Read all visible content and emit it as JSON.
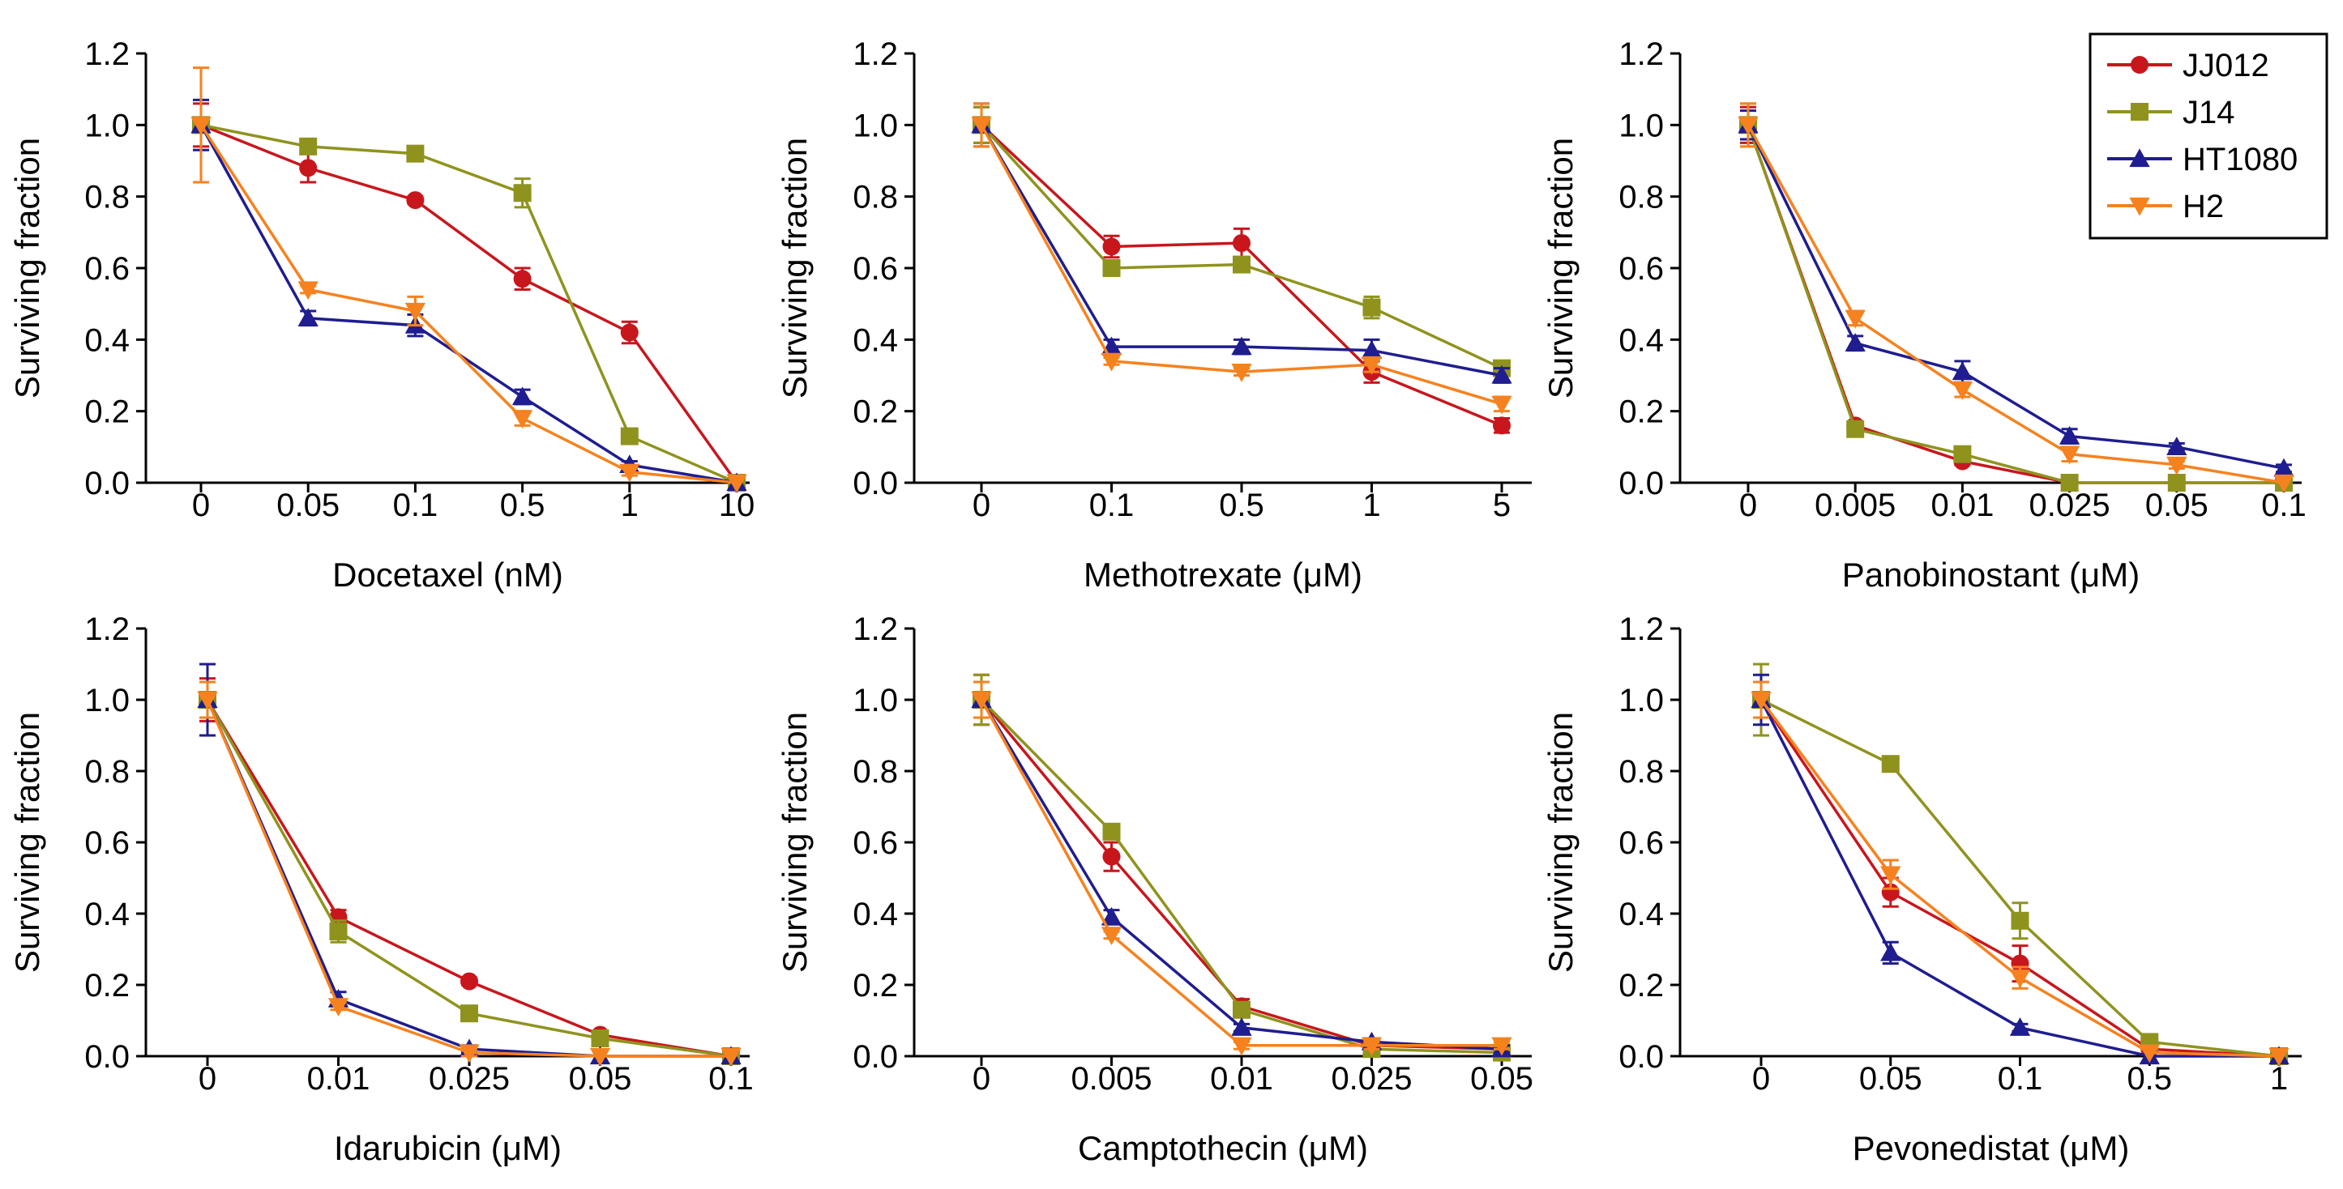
{
  "legend": {
    "location": "top-right",
    "entries": [
      {
        "name": "JJ012",
        "color": "#c8161d",
        "marker": "circle"
      },
      {
        "name": "J14",
        "color": "#8f931e",
        "marker": "square"
      },
      {
        "name": "HT1080",
        "color": "#1f1d8f",
        "marker": "triangle-up"
      },
      {
        "name": "H2",
        "color": "#f6821f",
        "marker": "triangle-down"
      }
    ]
  },
  "chart_data": [
    {
      "type": "line",
      "xlabel": "Docetaxel (nM)",
      "ylabel": "Surviving fraction",
      "ylim": [
        0,
        1.2
      ],
      "yticks": [
        "0.0",
        "0.2",
        "0.4",
        "0.6",
        "0.8",
        "1.0",
        "1.2"
      ],
      "categories": [
        "0",
        "0.05",
        "0.1",
        "0.5",
        "1",
        "10"
      ],
      "series": [
        {
          "name": "JJ012",
          "values": [
            1.0,
            0.88,
            0.79,
            0.57,
            0.42,
            0.0
          ],
          "errors": [
            0.06,
            0.04,
            0.01,
            0.03,
            0.03,
            0.0
          ]
        },
        {
          "name": "J14",
          "values": [
            1.0,
            0.94,
            0.92,
            0.81,
            0.13,
            0.0
          ],
          "errors": [
            0.02,
            0.01,
            0.01,
            0.04,
            0.01,
            0.0
          ]
        },
        {
          "name": "HT1080",
          "values": [
            1.0,
            0.46,
            0.44,
            0.24,
            0.05,
            0.0
          ],
          "errors": [
            0.07,
            0.02,
            0.03,
            0.02,
            0.01,
            0.0
          ]
        },
        {
          "name": "H2",
          "values": [
            1.0,
            0.54,
            0.48,
            0.18,
            0.03,
            0.0
          ],
          "errors": [
            0.16,
            0.01,
            0.04,
            0.02,
            0.01,
            0.0
          ]
        }
      ]
    },
    {
      "type": "line",
      "xlabel": "Methotrexate (μM)",
      "ylabel": "Surviving fraction",
      "ylim": [
        0,
        1.2
      ],
      "yticks": [
        "0.0",
        "0.2",
        "0.4",
        "0.6",
        "0.8",
        "1.0",
        "1.2"
      ],
      "categories": [
        "0",
        "0.1",
        "0.5",
        "1",
        "5"
      ],
      "series": [
        {
          "name": "JJ012",
          "values": [
            1.0,
            0.66,
            0.67,
            0.31,
            0.16
          ],
          "errors": [
            0.05,
            0.03,
            0.04,
            0.03,
            0.02
          ]
        },
        {
          "name": "J14",
          "values": [
            1.0,
            0.6,
            0.61,
            0.49,
            0.32
          ],
          "errors": [
            0.05,
            0.02,
            0.02,
            0.03,
            0.02
          ]
        },
        {
          "name": "HT1080",
          "values": [
            1.0,
            0.38,
            0.38,
            0.37,
            0.3
          ],
          "errors": [
            0.06,
            0.02,
            0.02,
            0.03,
            0.02
          ]
        },
        {
          "name": "H2",
          "values": [
            1.0,
            0.34,
            0.31,
            0.33,
            0.22
          ],
          "errors": [
            0.06,
            0.01,
            0.01,
            0.02,
            0.02
          ]
        }
      ]
    },
    {
      "type": "line",
      "xlabel": "Panobinostant (μM)",
      "ylabel": "Surviving fraction",
      "ylim": [
        0,
        1.2
      ],
      "yticks": [
        "0.0",
        "0.2",
        "0.4",
        "0.6",
        "0.8",
        "1.0",
        "1.2"
      ],
      "categories": [
        "0",
        "0.005",
        "0.01",
        "0.025",
        "0.05",
        "0.1"
      ],
      "series": [
        {
          "name": "JJ012",
          "values": [
            1.0,
            0.16,
            0.06,
            0.0,
            0.0,
            0.0
          ],
          "errors": [
            0.05,
            0.01,
            0.01,
            0.0,
            0.0,
            0.0
          ]
        },
        {
          "name": "J14",
          "values": [
            1.0,
            0.15,
            0.08,
            0.0,
            0.0,
            0.0
          ],
          "errors": [
            0.06,
            0.01,
            0.01,
            0.0,
            0.0,
            0.0
          ]
        },
        {
          "name": "HT1080",
          "values": [
            1.0,
            0.39,
            0.31,
            0.13,
            0.1,
            0.04
          ],
          "errors": [
            0.04,
            0.02,
            0.03,
            0.02,
            0.01,
            0.01
          ]
        },
        {
          "name": "H2",
          "values": [
            1.0,
            0.46,
            0.26,
            0.08,
            0.05,
            0.0
          ],
          "errors": [
            0.06,
            0.02,
            0.02,
            0.02,
            0.01,
            0.0
          ]
        }
      ]
    },
    {
      "type": "line",
      "xlabel": "Idarubicin (μM)",
      "ylabel": "Surviving fraction",
      "ylim": [
        0,
        1.2
      ],
      "yticks": [
        "0.0",
        "0.2",
        "0.4",
        "0.6",
        "0.8",
        "1.0",
        "1.2"
      ],
      "categories": [
        "0",
        "0.01",
        "0.025",
        "0.05",
        "0.1"
      ],
      "series": [
        {
          "name": "JJ012",
          "values": [
            1.0,
            0.39,
            0.21,
            0.06,
            0.0
          ],
          "errors": [
            0.06,
            0.02,
            0.01,
            0.01,
            0.0
          ]
        },
        {
          "name": "J14",
          "values": [
            1.0,
            0.35,
            0.12,
            0.05,
            0.0
          ],
          "errors": [
            0.05,
            0.03,
            0.01,
            0.01,
            0.0
          ]
        },
        {
          "name": "HT1080",
          "values": [
            1.0,
            0.16,
            0.02,
            0.0,
            0.0
          ],
          "errors": [
            0.1,
            0.02,
            0.01,
            0.0,
            0.0
          ]
        },
        {
          "name": "H2",
          "values": [
            1.0,
            0.14,
            0.01,
            0.0,
            0.0
          ],
          "errors": [
            0.05,
            0.01,
            0.01,
            0.0,
            0.0
          ]
        }
      ]
    },
    {
      "type": "line",
      "xlabel": "Camptothecin (μM)",
      "ylabel": "Surviving fraction",
      "ylim": [
        0,
        1.2
      ],
      "yticks": [
        "0.0",
        "0.2",
        "0.4",
        "0.6",
        "0.8",
        "1.0",
        "1.2"
      ],
      "categories": [
        "0",
        "0.005",
        "0.01",
        "0.025",
        "0.05"
      ],
      "series": [
        {
          "name": "JJ012",
          "values": [
            1.0,
            0.56,
            0.14,
            0.03,
            0.02
          ],
          "errors": [
            0.07,
            0.04,
            0.02,
            0.01,
            0.01
          ]
        },
        {
          "name": "J14",
          "values": [
            1.0,
            0.63,
            0.13,
            0.02,
            0.01
          ],
          "errors": [
            0.07,
            0.02,
            0.01,
            0.01,
            0.01
          ]
        },
        {
          "name": "HT1080",
          "values": [
            1.0,
            0.39,
            0.08,
            0.04,
            0.02
          ],
          "errors": [
            0.05,
            0.02,
            0.01,
            0.01,
            0.01
          ]
        },
        {
          "name": "H2",
          "values": [
            1.0,
            0.34,
            0.03,
            0.03,
            0.03
          ],
          "errors": [
            0.05,
            0.01,
            0.01,
            0.01,
            0.01
          ]
        }
      ]
    },
    {
      "type": "line",
      "xlabel": "Pevonedistat (μM)",
      "ylabel": "Surviving fraction",
      "ylim": [
        0,
        1.2
      ],
      "yticks": [
        "0.0",
        "0.2",
        "0.4",
        "0.6",
        "0.8",
        "1.0",
        "1.2"
      ],
      "categories": [
        "0",
        "0.05",
        "0.1",
        "0.5",
        "1"
      ],
      "series": [
        {
          "name": "JJ012",
          "values": [
            1.0,
            0.46,
            0.26,
            0.02,
            0.0
          ],
          "errors": [
            0.05,
            0.04,
            0.05,
            0.01,
            0.0
          ]
        },
        {
          "name": "J14",
          "values": [
            1.0,
            0.82,
            0.38,
            0.04,
            0.0
          ],
          "errors": [
            0.1,
            0.01,
            0.05,
            0.01,
            0.0
          ]
        },
        {
          "name": "HT1080",
          "values": [
            1.0,
            0.29,
            0.08,
            0.0,
            0.0
          ],
          "errors": [
            0.07,
            0.03,
            0.01,
            0.0,
            0.0
          ]
        },
        {
          "name": "H2",
          "values": [
            1.0,
            0.51,
            0.22,
            0.01,
            0.0
          ],
          "errors": [
            0.05,
            0.04,
            0.03,
            0.0,
            0.0
          ]
        }
      ]
    }
  ]
}
